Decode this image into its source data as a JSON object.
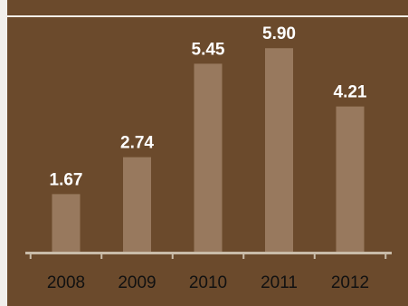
{
  "colors": {
    "background": "#6b4a2c",
    "bar": "#98795e",
    "axis": "#c9bca9",
    "text_values": "#ffffff",
    "text_ticks": "#111111"
  },
  "chart_data": {
    "type": "bar",
    "categories": [
      "2008",
      "2009",
      "2010",
      "2011",
      "2012"
    ],
    "values": [
      1.67,
      2.74,
      5.45,
      5.9,
      4.21
    ],
    "value_labels": [
      "1.67",
      "2.74",
      "5.45",
      "5.90",
      "4.21"
    ],
    "title": "",
    "xlabel": "",
    "ylabel": "",
    "ylim": [
      0,
      6.3
    ],
    "grid": false,
    "legend": "none"
  }
}
